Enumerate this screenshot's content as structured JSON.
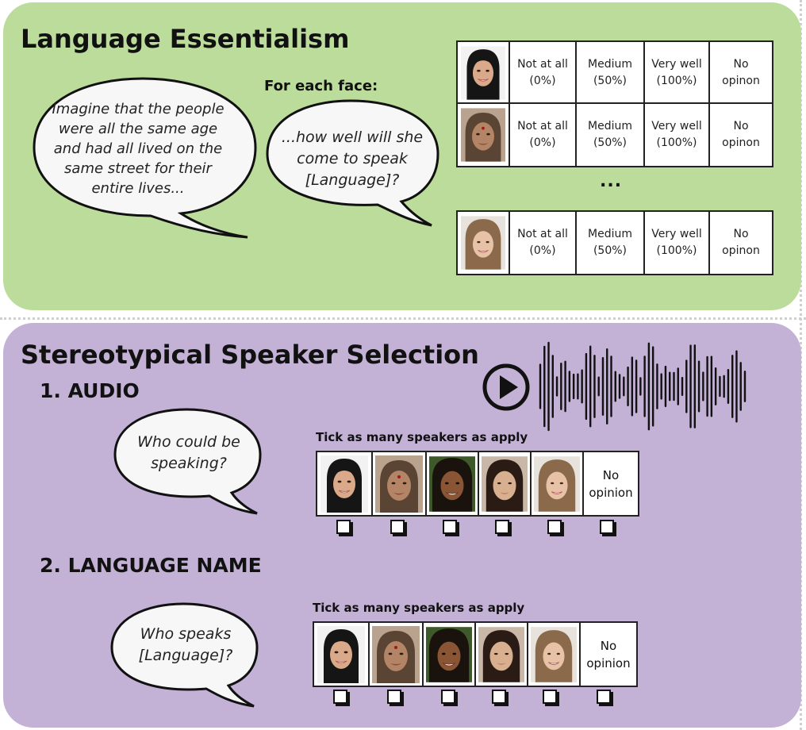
{
  "essentialism": {
    "title": "Language Essentialism",
    "bubble_imagine": "Imagine that the people were all the same age and had all lived on the same street for their entire lives...",
    "for_each_face": "For each face:",
    "bubble_question": "...how well will she come to speak [Language]?",
    "options": [
      {
        "line1": "Not at all",
        "line2": "(0%)"
      },
      {
        "line1": "Medium",
        "line2": "(50%)"
      },
      {
        "line1": "Very well",
        "line2": "(100%)"
      },
      {
        "line1": "No",
        "line2": "opinon"
      }
    ],
    "ellipsis": "..."
  },
  "selection": {
    "title": "Stereotypical Speaker Selection",
    "audio_heading": "1. AUDIO",
    "audio_bubble": "Who could be speaking?",
    "audio_instruction": "Tick as many speakers as apply",
    "name_heading": "2. LANGUAGE NAME",
    "name_bubble": "Who speaks [Language]?",
    "name_instruction": "Tick as many speakers as apply",
    "no_opinion_line1": "No",
    "no_opinion_line2": "opinion"
  },
  "icons": {
    "play": "play-button-icon",
    "waveform": "audio-waveform-icon",
    "faces": [
      "face-hijab-icon",
      "face-bindi-icon",
      "face-dark-hair-icon",
      "face-east-asian-icon",
      "face-light-hair-icon"
    ]
  },
  "colors": {
    "top_panel": "#bcdc9b",
    "bottom_panel": "#c3b1d6"
  }
}
